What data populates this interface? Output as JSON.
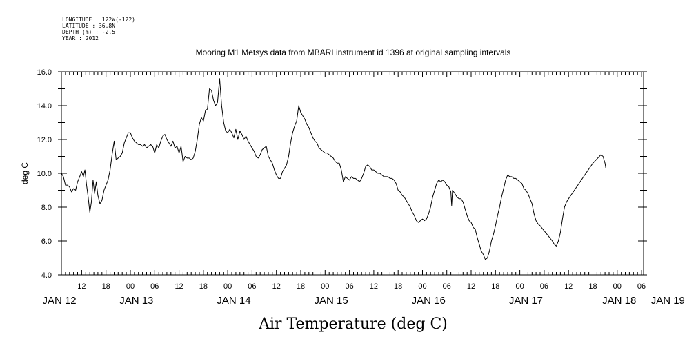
{
  "header": {
    "info_lines": [
      "LONGITUDE : 122W(-122)",
      "LATITUDE : 36.8N",
      "DEPTH (m) : -2.5",
      "YEAR : 2012"
    ],
    "title": "Mooring M1 Metsys data from MBARI instrument id 1396 at original sampling intervals"
  },
  "chart_data": {
    "type": "line",
    "title": "Mooring M1 Metsys data from MBARI instrument id 1396 at original sampling intervals",
    "xlabel": "Air Temperature (deg C)",
    "ylabel": "deg C",
    "x_unit": "hours since 2012-01-12 00:00",
    "xlim": [
      7,
      150.5
    ],
    "ylim": [
      4.0,
      16.0
    ],
    "y_ticks": [
      "4.0",
      "6.0",
      "8.0",
      "10.0",
      "12.0",
      "14.0",
      "16.0"
    ],
    "hour_ticks": [
      {
        "x": 12,
        "label": "12"
      },
      {
        "x": 18,
        "label": "18"
      },
      {
        "x": 24,
        "label": "00"
      },
      {
        "x": 30,
        "label": "06"
      },
      {
        "x": 36,
        "label": "12"
      },
      {
        "x": 42,
        "label": "18"
      },
      {
        "x": 48,
        "label": "00"
      },
      {
        "x": 54,
        "label": "06"
      },
      {
        "x": 60,
        "label": "12"
      },
      {
        "x": 66,
        "label": "18"
      },
      {
        "x": 72,
        "label": "00"
      },
      {
        "x": 78,
        "label": "06"
      },
      {
        "x": 84,
        "label": "12"
      },
      {
        "x": 90,
        "label": "18"
      },
      {
        "x": 96,
        "label": "00"
      },
      {
        "x": 102,
        "label": "06"
      },
      {
        "x": 108,
        "label": "12"
      },
      {
        "x": 114,
        "label": "18"
      },
      {
        "x": 120,
        "label": "00"
      },
      {
        "x": 126,
        "label": "06"
      },
      {
        "x": 132,
        "label": "12"
      },
      {
        "x": 138,
        "label": "18"
      },
      {
        "x": 144,
        "label": "00"
      },
      {
        "x": 150,
        "label": "06"
      }
    ],
    "day_labels": [
      {
        "x": 6.5,
        "label": "JAN 12"
      },
      {
        "x": 25.5,
        "label": "JAN 13"
      },
      {
        "x": 49.5,
        "label": "JAN 14"
      },
      {
        "x": 73.5,
        "label": "JAN 15"
      },
      {
        "x": 97.5,
        "label": "JAN 16"
      },
      {
        "x": 121.5,
        "label": "JAN 17"
      },
      {
        "x": 144.5,
        "label": "JAN 18"
      },
      {
        "x": 156.5,
        "label": "JAN 19"
      }
    ],
    "series": [
      {
        "color": "#000000",
        "points": [
          [
            7,
            10.0
          ],
          [
            7.5,
            9.8
          ],
          [
            8,
            9.3
          ],
          [
            8.5,
            9.3
          ],
          [
            9,
            9.2
          ],
          [
            9.5,
            8.9
          ],
          [
            10,
            9.1
          ],
          [
            10.5,
            9.0
          ],
          [
            11,
            9.5
          ],
          [
            11.5,
            9.8
          ],
          [
            12,
            10.1
          ],
          [
            12.4,
            9.8
          ],
          [
            12.8,
            10.2
          ],
          [
            13.2,
            9.3
          ],
          [
            13.6,
            8.6
          ],
          [
            14,
            7.7
          ],
          [
            14.4,
            8.3
          ],
          [
            14.8,
            9.6
          ],
          [
            15.2,
            8.8
          ],
          [
            15.6,
            9.5
          ],
          [
            16,
            8.7
          ],
          [
            16.5,
            8.2
          ],
          [
            17,
            8.4
          ],
          [
            17.5,
            9.0
          ],
          [
            18,
            9.3
          ],
          [
            18.5,
            9.6
          ],
          [
            19,
            10.2
          ],
          [
            19.5,
            11.1
          ],
          [
            20,
            11.9
          ],
          [
            20.5,
            10.8
          ],
          [
            21,
            10.9
          ],
          [
            21.5,
            11.0
          ],
          [
            22,
            11.2
          ],
          [
            22.5,
            11.8
          ],
          [
            23,
            12.1
          ],
          [
            23.5,
            12.4
          ],
          [
            24,
            12.4
          ],
          [
            24.5,
            12.1
          ],
          [
            25,
            11.9
          ],
          [
            25.5,
            11.8
          ],
          [
            26,
            11.7
          ],
          [
            26.5,
            11.7
          ],
          [
            27,
            11.6
          ],
          [
            27.5,
            11.7
          ],
          [
            28,
            11.5
          ],
          [
            28.5,
            11.6
          ],
          [
            29,
            11.7
          ],
          [
            29.5,
            11.6
          ],
          [
            30,
            11.2
          ],
          [
            30.5,
            11.7
          ],
          [
            31,
            11.5
          ],
          [
            31.5,
            11.9
          ],
          [
            32,
            12.2
          ],
          [
            32.5,
            12.3
          ],
          [
            33,
            12.0
          ],
          [
            33.5,
            11.8
          ],
          [
            34,
            11.6
          ],
          [
            34.5,
            11.9
          ],
          [
            35,
            11.5
          ],
          [
            35.5,
            11.6
          ],
          [
            36,
            11.2
          ],
          [
            36.5,
            11.6
          ],
          [
            37,
            10.7
          ],
          [
            37.5,
            11.0
          ],
          [
            38,
            10.9
          ],
          [
            38.5,
            10.9
          ],
          [
            39,
            10.8
          ],
          [
            39.5,
            10.9
          ],
          [
            40,
            11.3
          ],
          [
            40.5,
            12.0
          ],
          [
            41,
            12.9
          ],
          [
            41.5,
            13.3
          ],
          [
            42,
            13.1
          ],
          [
            42.5,
            13.7
          ],
          [
            43,
            13.8
          ],
          [
            43.5,
            15.0
          ],
          [
            44,
            14.9
          ],
          [
            44.5,
            14.3
          ],
          [
            45,
            14.0
          ],
          [
            45.5,
            14.2
          ],
          [
            46,
            15.6
          ],
          [
            46.5,
            14.0
          ],
          [
            47,
            13.0
          ],
          [
            47.5,
            12.5
          ],
          [
            48,
            12.4
          ],
          [
            48.5,
            12.6
          ],
          [
            49,
            12.4
          ],
          [
            49.5,
            12.1
          ],
          [
            50,
            12.6
          ],
          [
            50.5,
            12.0
          ],
          [
            51,
            12.5
          ],
          [
            51.5,
            12.3
          ],
          [
            52,
            12.0
          ],
          [
            52.5,
            12.2
          ],
          [
            53,
            11.9
          ],
          [
            53.5,
            11.7
          ],
          [
            54,
            11.5
          ],
          [
            54.5,
            11.3
          ],
          [
            55,
            11.0
          ],
          [
            55.5,
            10.9
          ],
          [
            56,
            11.1
          ],
          [
            56.5,
            11.4
          ],
          [
            57,
            11.5
          ],
          [
            57.5,
            11.6
          ],
          [
            58,
            11.0
          ],
          [
            58.5,
            10.8
          ],
          [
            59,
            10.6
          ],
          [
            59.5,
            10.2
          ],
          [
            60,
            9.9
          ],
          [
            60.5,
            9.7
          ],
          [
            61,
            9.7
          ],
          [
            61.5,
            10.1
          ],
          [
            62,
            10.3
          ],
          [
            62.5,
            10.5
          ],
          [
            63,
            11.0
          ],
          [
            63.5,
            11.8
          ],
          [
            64,
            12.4
          ],
          [
            64.5,
            12.8
          ],
          [
            65,
            13.1
          ],
          [
            65.5,
            14.0
          ],
          [
            66,
            13.6
          ],
          [
            66.5,
            13.4
          ],
          [
            67,
            13.2
          ],
          [
            67.5,
            12.9
          ],
          [
            68,
            12.7
          ],
          [
            68.5,
            12.4
          ],
          [
            69,
            12.1
          ],
          [
            69.5,
            11.9
          ],
          [
            70,
            11.8
          ],
          [
            70.5,
            11.5
          ],
          [
            71,
            11.4
          ],
          [
            71.5,
            11.3
          ],
          [
            72,
            11.2
          ],
          [
            72.5,
            11.2
          ],
          [
            73,
            11.1
          ],
          [
            73.5,
            11.0
          ],
          [
            74,
            10.9
          ],
          [
            74.5,
            10.7
          ],
          [
            75,
            10.6
          ],
          [
            75.5,
            10.6
          ],
          [
            76,
            10.2
          ],
          [
            76.5,
            9.5
          ],
          [
            77,
            9.8
          ],
          [
            77.5,
            9.7
          ],
          [
            78,
            9.6
          ],
          [
            78.5,
            9.8
          ],
          [
            79,
            9.7
          ],
          [
            79.5,
            9.7
          ],
          [
            80,
            9.6
          ],
          [
            80.5,
            9.5
          ],
          [
            81,
            9.7
          ],
          [
            81.5,
            10.0
          ],
          [
            82,
            10.4
          ],
          [
            82.5,
            10.5
          ],
          [
            83,
            10.4
          ],
          [
            83.5,
            10.2
          ],
          [
            84,
            10.2
          ],
          [
            84.5,
            10.1
          ],
          [
            85,
            10.0
          ],
          [
            85.5,
            10.0
          ],
          [
            86,
            9.9
          ],
          [
            86.5,
            9.8
          ],
          [
            87,
            9.8
          ],
          [
            87.5,
            9.8
          ],
          [
            88,
            9.7
          ],
          [
            88.5,
            9.7
          ],
          [
            89,
            9.6
          ],
          [
            89.5,
            9.4
          ],
          [
            90,
            9.0
          ],
          [
            90.5,
            8.9
          ],
          [
            91,
            8.7
          ],
          [
            91.5,
            8.6
          ],
          [
            92,
            8.4
          ],
          [
            92.5,
            8.2
          ],
          [
            93,
            8.0
          ],
          [
            93.5,
            7.7
          ],
          [
            94,
            7.5
          ],
          [
            94.5,
            7.2
          ],
          [
            95,
            7.1
          ],
          [
            95.5,
            7.2
          ],
          [
            96,
            7.3
          ],
          [
            96.5,
            7.2
          ],
          [
            97,
            7.3
          ],
          [
            97.5,
            7.6
          ],
          [
            98,
            8.0
          ],
          [
            98.5,
            8.6
          ],
          [
            99,
            9.0
          ],
          [
            99.5,
            9.4
          ],
          [
            100,
            9.6
          ],
          [
            100.5,
            9.5
          ],
          [
            101,
            9.6
          ],
          [
            101.5,
            9.5
          ],
          [
            102,
            9.3
          ],
          [
            102.5,
            9.2
          ],
          [
            103,
            8.9
          ],
          [
            103.2,
            8.1
          ],
          [
            103.4,
            9.0
          ],
          [
            104,
            8.8
          ],
          [
            104.5,
            8.6
          ],
          [
            105,
            8.5
          ],
          [
            105.5,
            8.5
          ],
          [
            106,
            8.3
          ],
          [
            106.5,
            7.9
          ],
          [
            107,
            7.5
          ],
          [
            107.5,
            7.2
          ],
          [
            108,
            7.1
          ],
          [
            108.5,
            6.8
          ],
          [
            109,
            6.7
          ],
          [
            109.5,
            6.2
          ],
          [
            110,
            5.8
          ],
          [
            110.5,
            5.4
          ],
          [
            111,
            5.2
          ],
          [
            111.5,
            4.9
          ],
          [
            112,
            5.0
          ],
          [
            112.5,
            5.4
          ],
          [
            113,
            6.0
          ],
          [
            113.5,
            6.4
          ],
          [
            114,
            6.9
          ],
          [
            114.5,
            7.5
          ],
          [
            115,
            8.0
          ],
          [
            115.5,
            8.6
          ],
          [
            116,
            9.1
          ],
          [
            116.5,
            9.6
          ],
          [
            117,
            9.9
          ],
          [
            117.5,
            9.8
          ],
          [
            118,
            9.8
          ],
          [
            118.5,
            9.7
          ],
          [
            119,
            9.7
          ],
          [
            119.5,
            9.6
          ],
          [
            120,
            9.5
          ],
          [
            120.5,
            9.4
          ],
          [
            121,
            9.1
          ],
          [
            121.5,
            9.0
          ],
          [
            122,
            8.8
          ],
          [
            122.5,
            8.5
          ],
          [
            123,
            8.2
          ],
          [
            123.5,
            7.6
          ],
          [
            124,
            7.2
          ],
          [
            124.5,
            7.0
          ],
          [
            125,
            6.9
          ],
          [
            126,
            6.6
          ],
          [
            127,
            6.3
          ],
          [
            128,
            6.0
          ],
          [
            128.5,
            5.8
          ],
          [
            129,
            5.7
          ],
          [
            129.5,
            6.0
          ],
          [
            130,
            6.5
          ],
          [
            130.5,
            7.3
          ],
          [
            131,
            8.0
          ],
          [
            131.5,
            8.3
          ],
          [
            132,
            8.5
          ],
          [
            134,
            9.2
          ],
          [
            136,
            9.9
          ],
          [
            138,
            10.6
          ],
          [
            140,
            11.1
          ],
          [
            140.5,
            11.0
          ],
          [
            141,
            10.6
          ],
          [
            141.2,
            10.3
          ]
        ]
      }
    ]
  }
}
